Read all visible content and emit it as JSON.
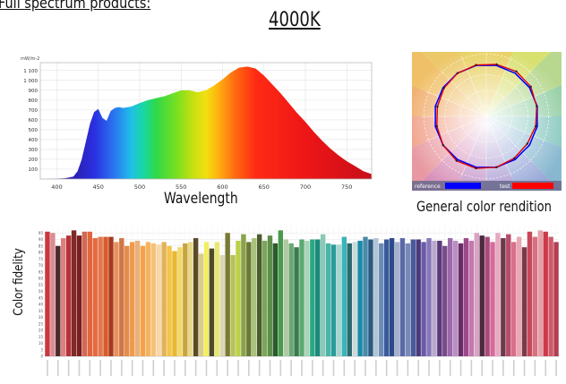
{
  "header": {
    "text": "Full spectrum products:"
  },
  "cct": "4000K",
  "chart_data": [
    {
      "type": "area",
      "name_label": "Wavelength",
      "ylabel": "mW/m-2",
      "x_ticks": [
        400,
        450,
        500,
        550,
        600,
        650,
        700,
        750
      ],
      "y_ticks": [
        "100",
        "200",
        "300",
        "400",
        "500",
        "600",
        "700",
        "800",
        "900",
        "1 000",
        "1 100"
      ],
      "xlim": [
        380,
        780
      ],
      "ylim": [
        0,
        1180
      ],
      "x": [
        380,
        395,
        410,
        420,
        425,
        430,
        435,
        440,
        445,
        450,
        455,
        460,
        465,
        470,
        475,
        480,
        490,
        500,
        510,
        520,
        530,
        540,
        550,
        560,
        570,
        580,
        590,
        600,
        610,
        620,
        630,
        640,
        650,
        660,
        670,
        680,
        690,
        700,
        710,
        720,
        730,
        740,
        750,
        760,
        770,
        780
      ],
      "y": [
        0,
        2,
        8,
        25,
        80,
        200,
        380,
        560,
        680,
        710,
        620,
        590,
        690,
        720,
        730,
        720,
        735,
        770,
        800,
        820,
        840,
        870,
        900,
        900,
        880,
        900,
        950,
        1010,
        1080,
        1130,
        1140,
        1120,
        1050,
        960,
        870,
        770,
        670,
        580,
        480,
        390,
        310,
        240,
        180,
        130,
        80,
        50
      ],
      "grid": true
    },
    {
      "type": "radar",
      "name_label": "General color rendition",
      "legend": {
        "reference_label": "reference",
        "test_label": "test",
        "reference_color": "#0000ff",
        "test_color": "#ff0000"
      },
      "bins": 16,
      "reference": [
        1,
        1,
        1,
        1,
        1,
        1,
        1,
        1,
        1,
        1,
        1,
        1,
        1,
        1,
        1,
        1
      ],
      "test": [
        1.02,
        1.04,
        1.03,
        0.99,
        0.97,
        0.95,
        0.97,
        1.0,
        1.02,
        1.03,
        1.0,
        0.97,
        0.96,
        0.98,
        1.0,
        1.01
      ]
    },
    {
      "type": "bar",
      "ylabel": "Color fidelity",
      "ylim": [
        0,
        100
      ],
      "y_ticks": [
        0,
        5,
        10,
        15,
        20,
        25,
        30,
        35,
        40,
        45,
        50,
        55,
        60,
        65,
        70,
        75,
        80,
        85,
        90,
        95
      ],
      "values": [
        96,
        95,
        85,
        91,
        93,
        97,
        93,
        96,
        96,
        91,
        92,
        92,
        92,
        88,
        91,
        85,
        88,
        89,
        85,
        88,
        87,
        86,
        88,
        85,
        81,
        84,
        87,
        88,
        91,
        79,
        88,
        83,
        88,
        78,
        95,
        78,
        89,
        94,
        88,
        91,
        94,
        89,
        93,
        87,
        97,
        90,
        87,
        84,
        90,
        89,
        90,
        90,
        94,
        87,
        86,
        86,
        92,
        87,
        88,
        89,
        92,
        90,
        91,
        87,
        90,
        91,
        88,
        91,
        87,
        90,
        90,
        88,
        91,
        89,
        89,
        85,
        91,
        89,
        87,
        91,
        89,
        95,
        93,
        92,
        88,
        95,
        91,
        94,
        88,
        92,
        84,
        96,
        92,
        97,
        96,
        92,
        88
      ],
      "colors": [
        "#c9383f",
        "#dc8c93",
        "#4a2a2a",
        "#e07f7f",
        "#b5333a",
        "#7e2a2a",
        "#7a1e1e",
        "#d06a58",
        "#e0663e",
        "#e66a3f",
        "#e0784f",
        "#d95b2b",
        "#a63a1e",
        "#e8905c",
        "#d17646",
        "#e48c4c",
        "#f09a4c",
        "#e9b07a",
        "#f4a24a",
        "#f4b45f",
        "#f5c27b",
        "#f7d7a8",
        "#e0b35a",
        "#f4c44a",
        "#e8b733",
        "#f2d76b",
        "#c8a43c",
        "#e6d88a",
        "#5a4a2a",
        "#d8cc8a",
        "#f2ee60",
        "#4e4a2c",
        "#e8e870",
        "#d9d7b5",
        "#7a7a34",
        "#b8c25a",
        "#bcd04a",
        "#8aa24c",
        "#6a7a34",
        "#a9c27c",
        "#4b5c2c",
        "#7aa65a",
        "#5e8e4a",
        "#2a5c2c",
        "#4a9a4e",
        "#b0c9a4",
        "#6aa872",
        "#3a7a4c",
        "#5aaa72",
        "#a9d4b6",
        "#2aa886",
        "#1a8a7a",
        "#8ac8b8",
        "#4ab4a8",
        "#2a9c98",
        "#a8d4d0",
        "#3ab4b8",
        "#2a6a70",
        "#c9d9d5",
        "#1a8aa8",
        "#4a8aaa",
        "#2a5a80",
        "#b0c4d4",
        "#6a8ab8",
        "#3a5a9a",
        "#2a4a8a",
        "#a4b0cc",
        "#5a6aa8",
        "#7a8ab8",
        "#4a5a9a",
        "#4a3a7a",
        "#6a5aa8",
        "#8878b8",
        "#b8a8cc",
        "#5a3a7a",
        "#7a4a8a",
        "#9a6aaa",
        "#b890c0",
        "#6a2a6a",
        "#9a4a8a",
        "#c478ac",
        "#d8a4c4",
        "#4a2a3c",
        "#a84a7a",
        "#d86a9c",
        "#e4aac0",
        "#6a3a4a",
        "#b84a6a",
        "#d8708a",
        "#e8a8b4",
        "#7a3a4a",
        "#c8485a",
        "#d87080",
        "#e4a0a8",
        "#cc3a4a",
        "#d05a6a",
        "#b04050"
      ]
    }
  ]
}
